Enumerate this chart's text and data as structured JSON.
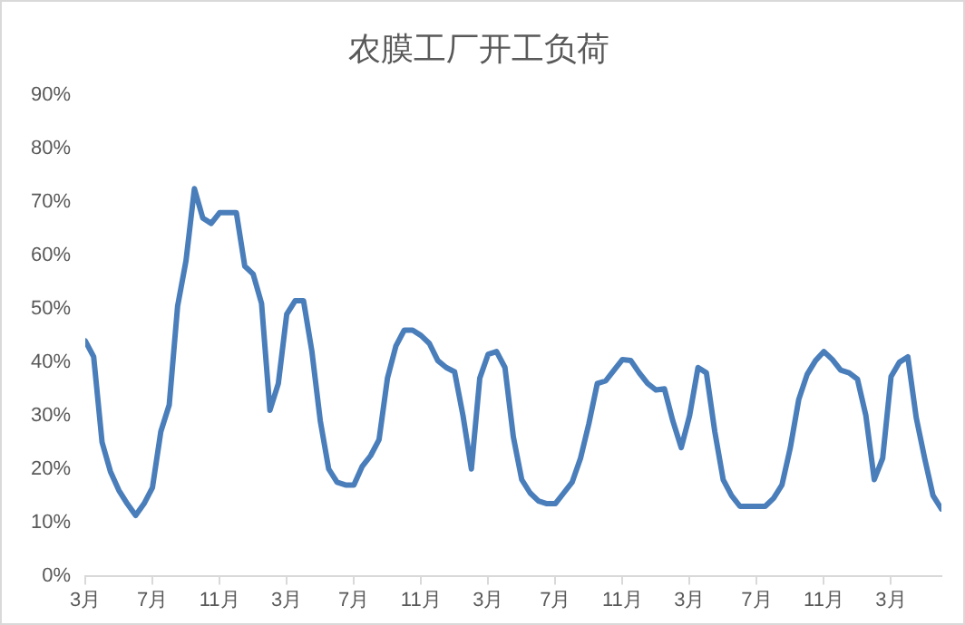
{
  "chart_data": {
    "type": "line",
    "title": "农膜工厂开工负荷",
    "categories": [
      "3月",
      null,
      null,
      null,
      null,
      null,
      null,
      null,
      "7月",
      null,
      null,
      null,
      null,
      null,
      null,
      null,
      "11月",
      null,
      null,
      null,
      null,
      null,
      null,
      null,
      "3月",
      null,
      null,
      null,
      null,
      null,
      null,
      null,
      "7月",
      null,
      null,
      null,
      null,
      null,
      null,
      null,
      "11月",
      null,
      null,
      null,
      null,
      null,
      null,
      null,
      "3月",
      null,
      null,
      null,
      null,
      null,
      null,
      null,
      "7月",
      null,
      null,
      null,
      null,
      null,
      null,
      null,
      "11月",
      null,
      null,
      null,
      null,
      null,
      null,
      null,
      "3月",
      null,
      null,
      null,
      null,
      null,
      null,
      null,
      "7月",
      null,
      null,
      null,
      null,
      null,
      null,
      null,
      "11月",
      null,
      null,
      null,
      null,
      null,
      null,
      null,
      "3月",
      null,
      null,
      null,
      null,
      null,
      null
    ],
    "series": [
      {
        "color": "#4a7ebb",
        "values": [
          44,
          41,
          25,
          19.5,
          16,
          13.5,
          11.3,
          13.5,
          16.5,
          27,
          32,
          50.5,
          59,
          72.5,
          67,
          66,
          68,
          68,
          68,
          58,
          56.5,
          51,
          31,
          36,
          49,
          51.5,
          51.5,
          42,
          29,
          20,
          17.5,
          17,
          17,
          20.5,
          22.5,
          25.5,
          37,
          43,
          46,
          46,
          45,
          43.5,
          40.3,
          39,
          38.2,
          30,
          20,
          37,
          41.5,
          42,
          39,
          26,
          18,
          15.5,
          14,
          13.5,
          13.5,
          15.5,
          17.5,
          22,
          28.5,
          36,
          36.5,
          38.5,
          40.5,
          40.3,
          38,
          36,
          34.8,
          35,
          29,
          24,
          30,
          39,
          38,
          27,
          18,
          15,
          13,
          13,
          13,
          13,
          14.5,
          17,
          24,
          33,
          37.7,
          40.3,
          42,
          40.5,
          38.5,
          38,
          36.8,
          30,
          18,
          22,
          37.3,
          40,
          41,
          29.6,
          22,
          15,
          12.5
        ]
      }
    ],
    "ylim": [
      0,
      90
    ],
    "yticks": [
      {
        "value": 0,
        "label": "0%"
      },
      {
        "value": 10,
        "label": "10%"
      },
      {
        "value": 20,
        "label": "20%"
      },
      {
        "value": 30,
        "label": "30%"
      },
      {
        "value": 40,
        "label": "40%"
      },
      {
        "value": 50,
        "label": "50%"
      },
      {
        "value": 60,
        "label": "60%"
      },
      {
        "value": 70,
        "label": "70%"
      },
      {
        "value": 80,
        "label": "80%"
      },
      {
        "value": 90,
        "label": "90%"
      }
    ],
    "grid": false,
    "legend": false,
    "marker": "none",
    "line_style": "solid"
  }
}
